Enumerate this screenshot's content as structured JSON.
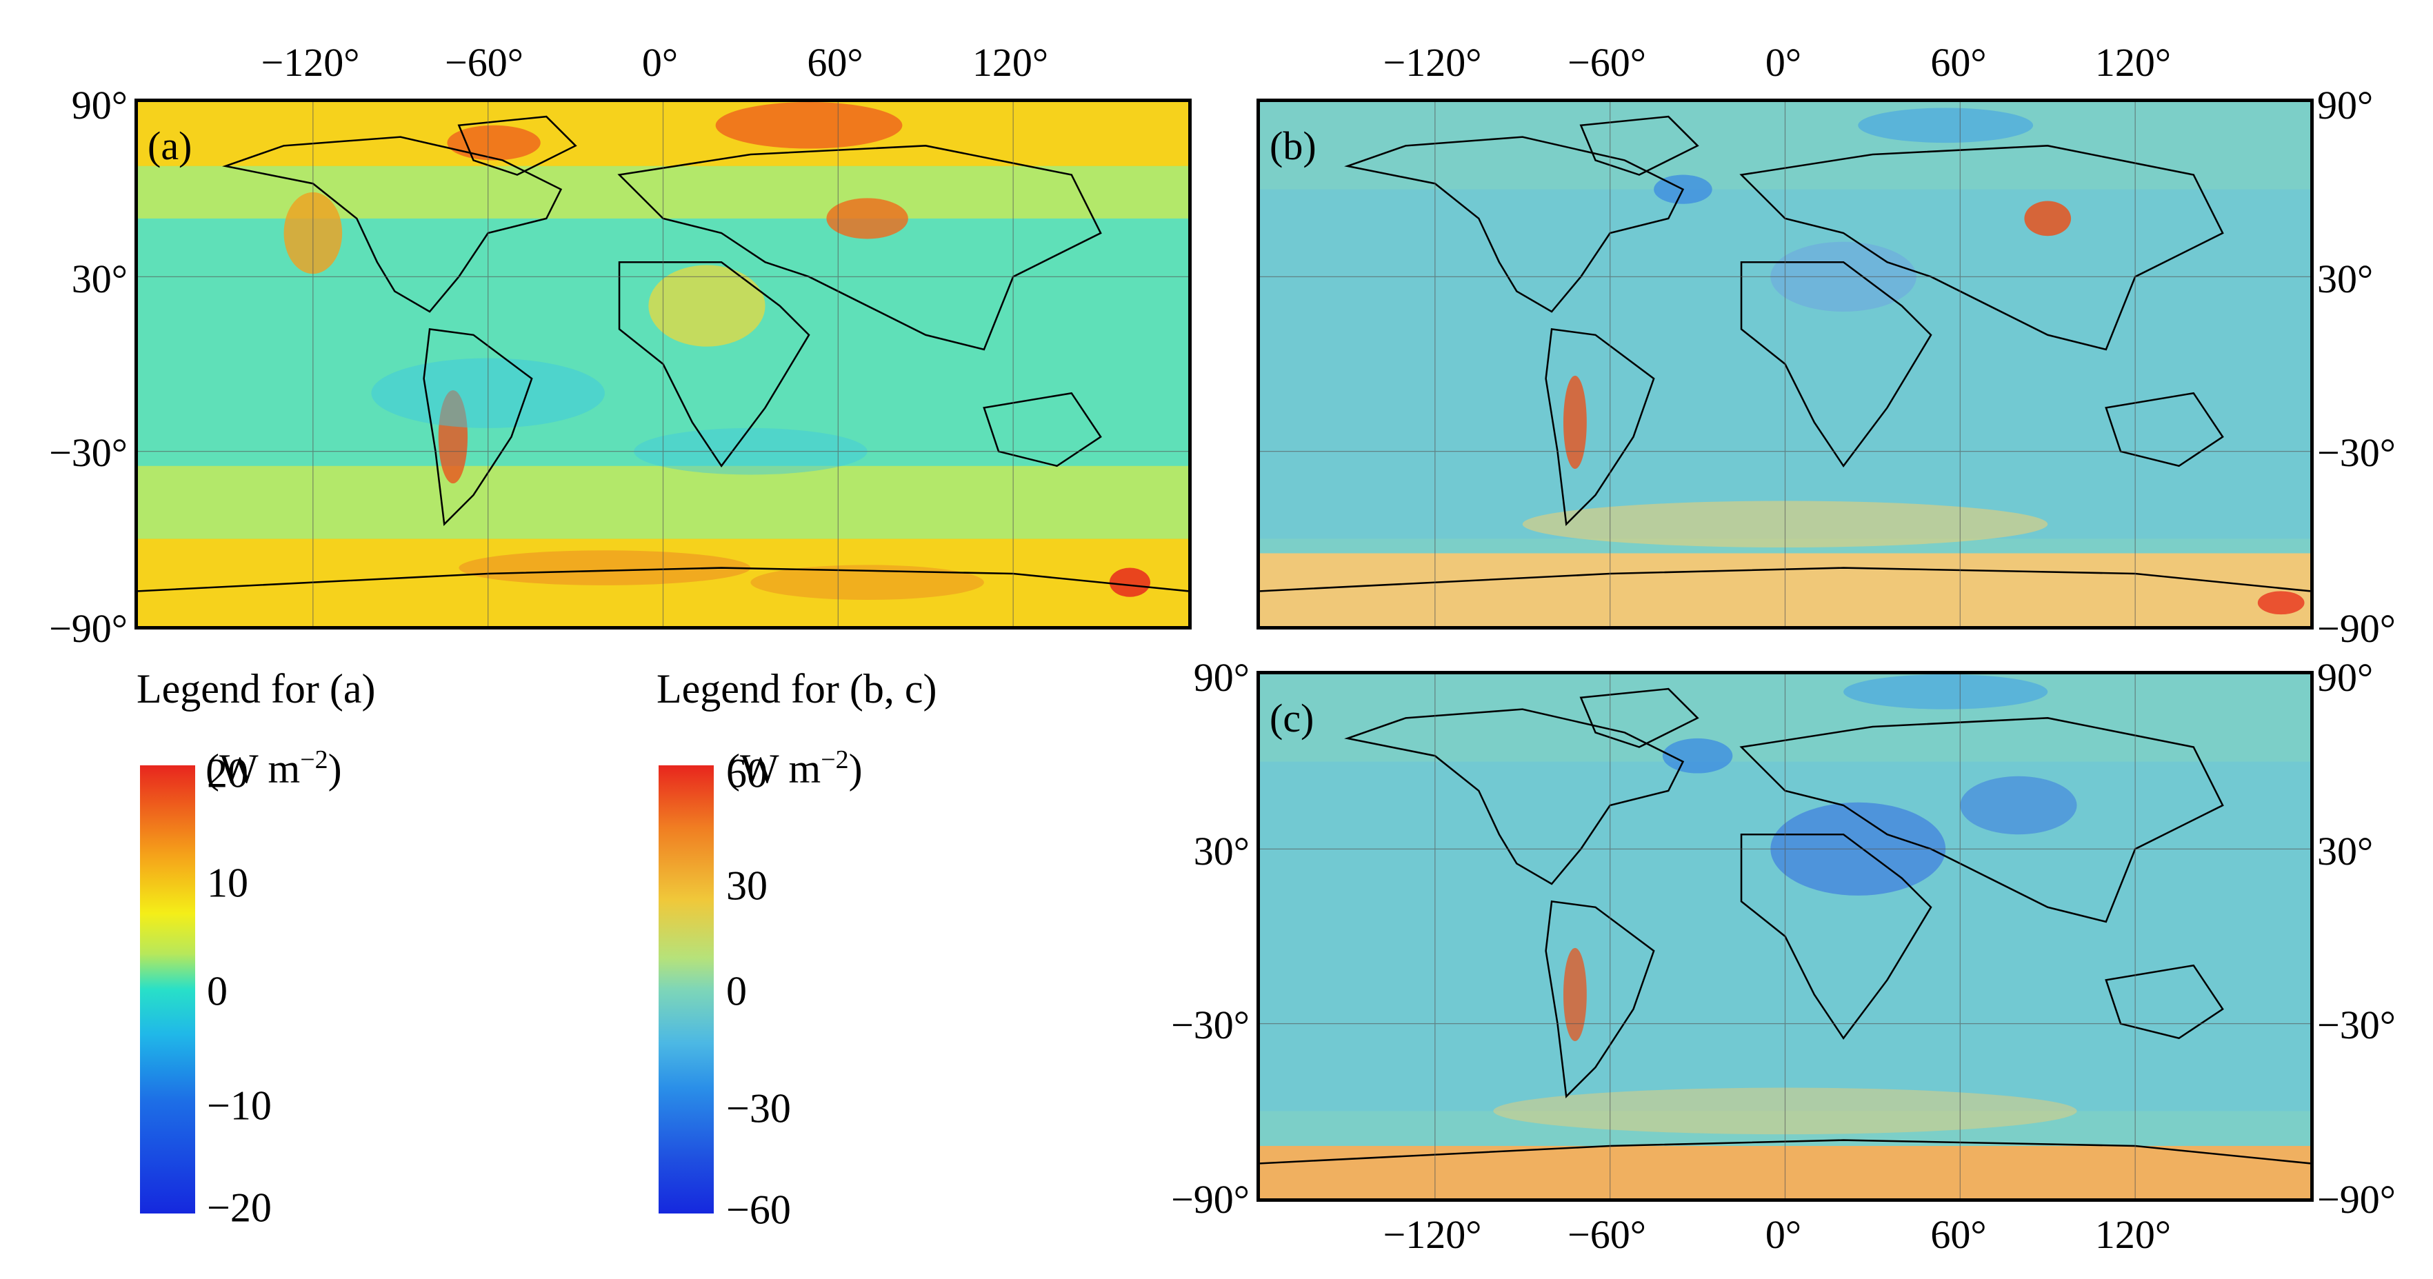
{
  "lon_ticks": [
    "−120°",
    "−60°",
    "0°",
    "60°",
    "120°"
  ],
  "lat_ticks": [
    "90°",
    "30°",
    "−30°",
    "−90°"
  ],
  "panels": {
    "a": {
      "label": "(a)"
    },
    "b": {
      "label": "(b)"
    },
    "c": {
      "label": "(c)"
    }
  },
  "legend_a": {
    "title": "Legend for (a)",
    "units": "(W m",
    "units_exp": "−2",
    "units_close": ")",
    "ticks": [
      "20",
      "10",
      "0",
      "−10",
      "−20"
    ],
    "range": [
      -20,
      20
    ]
  },
  "legend_bc": {
    "title": "Legend for (b, c)",
    "units": "(W m",
    "units_exp": "−2",
    "units_close": ")",
    "ticks": [
      "60",
      "30",
      "0",
      "−30",
      "−60"
    ],
    "range": [
      -60,
      60
    ]
  },
  "colors": {
    "ocean_a": "#5fe0b8",
    "ocean_bc": "#7ccfc8",
    "polar_a": "#f6d21c",
    "polar_bc": "#f0c878",
    "hot": "#e8341e",
    "cold": "#2050e0",
    "coast": "#000000"
  }
}
